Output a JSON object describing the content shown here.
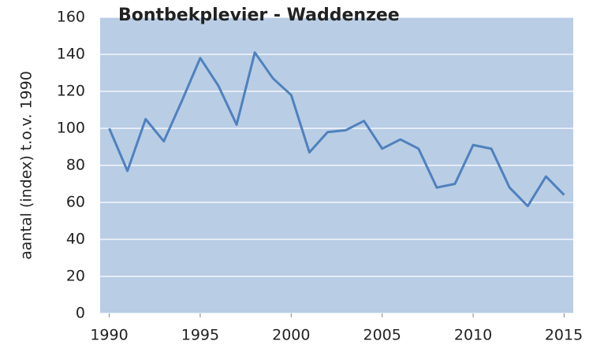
{
  "chart_data": {
    "type": "line",
    "title": "Bontbekplevier - Waddenzee",
    "y_label": "aantal (index) t.o.v. 1990",
    "x": [
      1990,
      1991,
      1992,
      1993,
      1994,
      1995,
      1996,
      1997,
      1998,
      1999,
      2000,
      2001,
      2002,
      2003,
      2004,
      2005,
      2006,
      2007,
      2008,
      2009,
      2010,
      2011,
      2012,
      2013,
      2014,
      2015
    ],
    "series": [
      {
        "color": "#4f81bd",
        "values": [
          100,
          77,
          105,
          93,
          115,
          138,
          123,
          102,
          141,
          127,
          118,
          87,
          98,
          99,
          104,
          89,
          94,
          89,
          68,
          70,
          91,
          89,
          68,
          58,
          74,
          64
        ]
      }
    ],
    "xlim": [
      1989.5,
      2015.5
    ],
    "xticks": [
      1990,
      1995,
      2000,
      2005,
      2010,
      2015
    ],
    "ylim": [
      0,
      160
    ],
    "yticks": [
      0,
      20,
      40,
      60,
      80,
      100,
      120,
      140,
      160
    ],
    "grid": true,
    "plot_background": "#b9cde5"
  }
}
